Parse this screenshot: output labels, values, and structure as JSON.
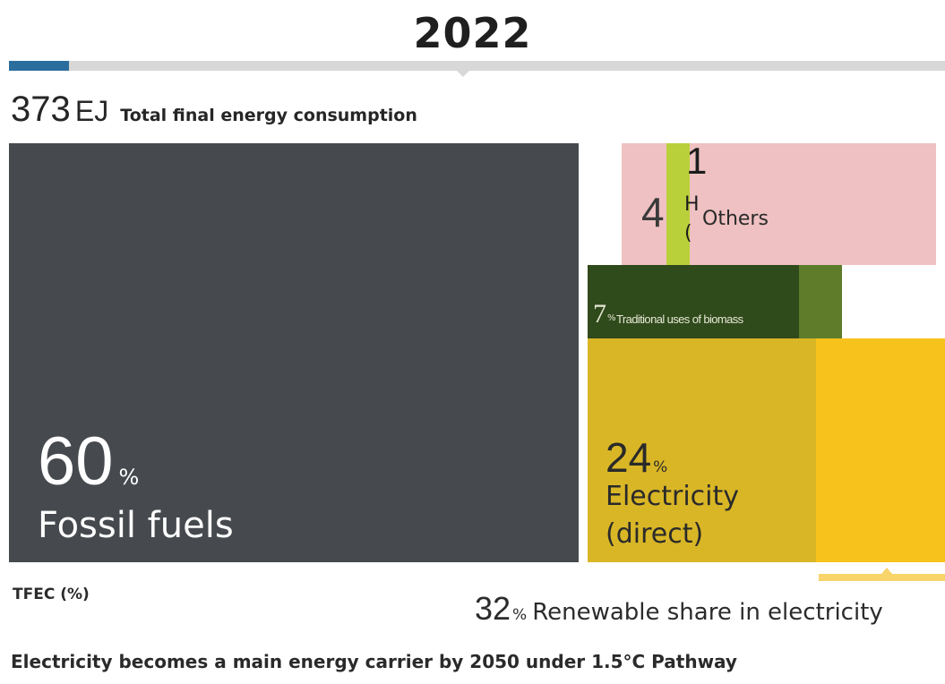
{
  "header": {
    "year": "2022",
    "timeline_progress": 0.06
  },
  "total": {
    "value": "373",
    "unit": "EJ",
    "label": "Total final energy consumption"
  },
  "chart_data": {
    "type": "treemap",
    "total": 373,
    "unit": "EJ",
    "series": [
      {
        "name": "Fossil fuels",
        "value": 60,
        "display_value": "60",
        "display_unit": "%"
      },
      {
        "name": "Electricity (direct)",
        "value": 24,
        "display_value": "24",
        "display_unit": "%"
      },
      {
        "name": "Traditional uses of biomass",
        "value": 7,
        "display_value": "7",
        "display_unit": "%"
      },
      {
        "name": "Others",
        "value": 4,
        "display_value": "4"
      },
      {
        "name": "",
        "value": 1,
        "display_value": "1"
      }
    ],
    "renewable_share_in_electricity": 32
  },
  "labels": {
    "fossil_pct": "60",
    "fossil_unit": "%",
    "fossil_name": "Fossil fuels",
    "others_num": "4",
    "others_name": "Others",
    "hydrogen_num": "1",
    "hydrogen_letter": "H",
    "hydrogen_paren": "(",
    "biomass_num": "7",
    "biomass_pct": "%",
    "biomass_name": "Traditional uses of biomass",
    "elec_pct": "24",
    "elec_unit": "%",
    "elec_line1": "Electricity",
    "elec_line2": "(direct)"
  },
  "footer": {
    "tfec_label": "TFEC (%)",
    "renewable_share_value": "32",
    "renewable_share_unit": "%",
    "renewable_share_label": "Renewable share in electricity",
    "caption": "Electricity becomes a main energy carrier by 2050 under 1.5°C Pathway"
  },
  "colors": {
    "fossil": "#464a4f",
    "others": "#efc1c2",
    "hydrogen": "#b9d03a",
    "modern_biomass": "#2f4a1b",
    "traditional_biomass": "#5e7c2a",
    "electricity": "#d9b626",
    "electricity_renewable": "#f8c21d",
    "timeline_progress": "#2b6e9e"
  }
}
